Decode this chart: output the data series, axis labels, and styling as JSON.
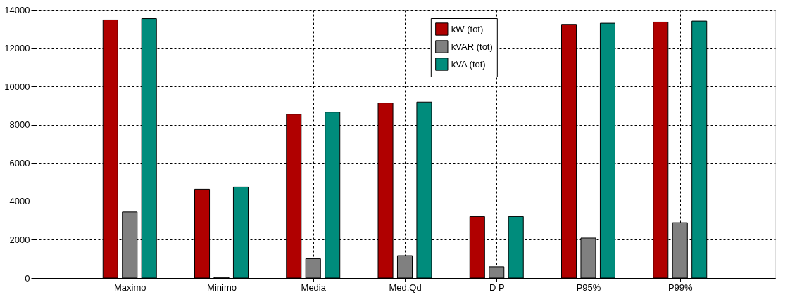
{
  "chart_data": {
    "type": "bar",
    "categories": [
      "Maximo",
      "Minimo",
      "Media",
      "Med.Qd",
      "D P",
      "P95%",
      "P99%"
    ],
    "series": [
      {
        "name": "kW (tot)",
        "color": "#b00000",
        "values": [
          13470,
          4640,
          8550,
          9140,
          3210,
          13240,
          13360
        ]
      },
      {
        "name": "kVAR (tot)",
        "color": "#808080",
        "values": [
          3450,
          40,
          1010,
          1170,
          590,
          2090,
          2890
        ]
      },
      {
        "name": "kVA (tot)",
        "color": "#008c7c",
        "values": [
          13540,
          4750,
          8660,
          9190,
          3210,
          13300,
          13410
        ]
      }
    ],
    "ylim": [
      0,
      14000
    ],
    "yticks": [
      0,
      2000,
      4000,
      6000,
      8000,
      10000,
      12000,
      14000
    ],
    "grid": true,
    "legend": "top"
  }
}
